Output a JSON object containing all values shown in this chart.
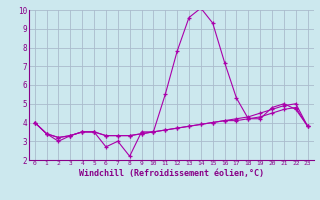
{
  "xlabel": "Windchill (Refroidissement éolien,°C)",
  "ylabel": "",
  "background_color": "#cce8ee",
  "line_color": "#aa00aa",
  "grid_color": "#aabbcc",
  "text_color": "#880088",
  "xlim": [
    -0.5,
    23.5
  ],
  "ylim": [
    2,
    10
  ],
  "yticks": [
    2,
    3,
    4,
    5,
    6,
    7,
    8,
    9,
    10
  ],
  "xticks": [
    0,
    1,
    2,
    3,
    4,
    5,
    6,
    7,
    8,
    9,
    10,
    11,
    12,
    13,
    14,
    15,
    16,
    17,
    18,
    19,
    20,
    21,
    22,
    23
  ],
  "series": [
    [
      4.0,
      3.4,
      3.0,
      3.3,
      3.5,
      3.5,
      2.7,
      3.0,
      2.2,
      3.5,
      3.5,
      5.5,
      7.8,
      9.6,
      10.1,
      9.3,
      7.2,
      5.3,
      4.2,
      4.2,
      4.8,
      5.0,
      4.7,
      3.8
    ],
    [
      4.0,
      3.4,
      3.2,
      3.3,
      3.5,
      3.5,
      3.3,
      3.3,
      3.3,
      3.4,
      3.5,
      3.6,
      3.7,
      3.8,
      3.9,
      4.0,
      4.1,
      4.1,
      4.2,
      4.3,
      4.5,
      4.7,
      4.8,
      3.8
    ],
    [
      4.0,
      3.4,
      3.2,
      3.3,
      3.5,
      3.5,
      3.3,
      3.3,
      3.3,
      3.4,
      3.5,
      3.6,
      3.7,
      3.8,
      3.9,
      4.0,
      4.1,
      4.2,
      4.3,
      4.5,
      4.7,
      4.9,
      5.0,
      3.8
    ]
  ]
}
